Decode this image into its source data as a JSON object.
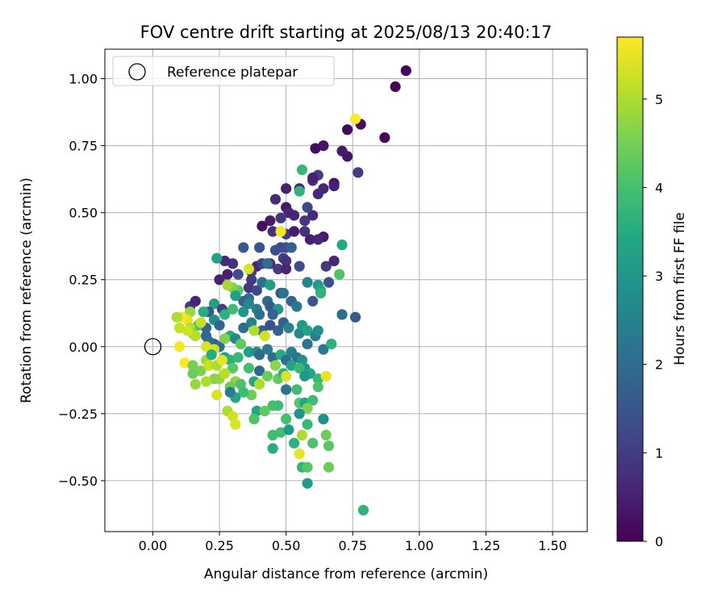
{
  "chart_data": {
    "type": "scatter",
    "title": "FOV centre drift starting at 2025/08/13 20:40:17",
    "xlabel": "Angular distance from reference (arcmin)",
    "ylabel": "Rotation from reference (arcmin)",
    "xlim": [
      -0.18,
      1.63
    ],
    "ylim": [
      -0.69,
      1.11
    ],
    "xticks": [
      0.0,
      0.25,
      0.5,
      0.75,
      1.0,
      1.25,
      1.5
    ],
    "xtick_labels": [
      "0.00",
      "0.25",
      "0.50",
      "0.75",
      "1.00",
      "1.25",
      "1.50"
    ],
    "yticks": [
      -0.5,
      -0.25,
      0.0,
      0.25,
      0.5,
      0.75,
      1.0
    ],
    "ytick_labels": [
      "−0.50",
      "−0.25",
      "0.00",
      "0.25",
      "0.50",
      "0.75",
      "1.00"
    ],
    "grid": true,
    "legend": {
      "placement": "top-left",
      "entries": [
        {
          "label": "Reference platepar",
          "marker": "open-circle"
        }
      ]
    },
    "reference_point": {
      "x": 0.0,
      "y": 0.0
    },
    "colorbar": {
      "label": "Hours from first FF file",
      "colormap": "viridis",
      "min": 0,
      "max": 5.7,
      "ticks": [
        0,
        1,
        2,
        3,
        4,
        5
      ],
      "tick_labels": [
        "0",
        "1",
        "2",
        "3",
        "4",
        "5"
      ]
    },
    "series": [
      {
        "color_by": "hours",
        "points": [
          [
            0.95,
            1.03,
            0.05
          ],
          [
            0.91,
            0.97,
            0.1
          ],
          [
            0.87,
            0.78,
            0.15
          ],
          [
            0.78,
            0.83,
            0.2
          ],
          [
            0.73,
            0.81,
            0.15
          ],
          [
            0.73,
            0.71,
            0.3
          ],
          [
            0.71,
            0.73,
            0.4
          ],
          [
            0.64,
            0.75,
            0.35
          ],
          [
            0.61,
            0.74,
            0.2
          ],
          [
            0.77,
            0.65,
            1.0
          ],
          [
            0.68,
            0.61,
            0.25
          ],
          [
            0.64,
            0.59,
            0.6
          ],
          [
            0.68,
            0.6,
            0.5
          ],
          [
            0.6,
            0.62,
            0.8
          ],
          [
            0.55,
            0.59,
            0.55
          ],
          [
            0.5,
            0.59,
            0.5
          ],
          [
            0.62,
            0.64,
            1.0
          ],
          [
            0.6,
            0.63,
            0.5
          ],
          [
            0.62,
            0.57,
            0.7
          ],
          [
            0.46,
            0.55,
            0.7
          ],
          [
            0.5,
            0.52,
            0.35
          ],
          [
            0.51,
            0.5,
            0.6
          ],
          [
            0.53,
            0.49,
            0.6
          ],
          [
            0.57,
            0.47,
            0.9
          ],
          [
            0.6,
            0.49,
            0.7
          ],
          [
            0.58,
            0.52,
            1.2
          ],
          [
            0.48,
            0.48,
            0.9
          ],
          [
            0.44,
            0.47,
            0.4
          ],
          [
            0.41,
            0.45,
            0.2
          ],
          [
            0.45,
            0.43,
            0.8
          ],
          [
            0.5,
            0.42,
            1.0
          ],
          [
            0.53,
            0.43,
            0.4
          ],
          [
            0.57,
            0.43,
            0.8
          ],
          [
            0.59,
            0.4,
            0.5
          ],
          [
            0.64,
            0.41,
            0.4
          ],
          [
            0.62,
            0.4,
            0.6
          ],
          [
            0.48,
            0.37,
            1.2
          ],
          [
            0.5,
            0.37,
            1.4
          ],
          [
            0.52,
            0.37,
            1.8
          ],
          [
            0.46,
            0.36,
            1.4
          ],
          [
            0.4,
            0.37,
            1.5
          ],
          [
            0.34,
            0.37,
            1.6
          ],
          [
            0.49,
            0.33,
            1.1
          ],
          [
            0.5,
            0.32,
            0.8
          ],
          [
            0.44,
            0.31,
            0.7
          ],
          [
            0.39,
            0.3,
            0.6
          ],
          [
            0.41,
            0.31,
            1.1
          ],
          [
            0.3,
            0.31,
            0.8
          ],
          [
            0.27,
            0.32,
            0.7
          ],
          [
            0.24,
            0.33,
            3.3
          ],
          [
            0.47,
            0.29,
            1.0
          ],
          [
            0.5,
            0.29,
            0.6
          ],
          [
            0.55,
            0.3,
            1.3
          ],
          [
            0.65,
            0.3,
            0.9
          ],
          [
            0.68,
            0.32,
            0.6
          ],
          [
            0.71,
            0.38,
            3.4
          ],
          [
            0.7,
            0.27,
            4.1
          ],
          [
            0.37,
            0.28,
            1.0
          ],
          [
            0.32,
            0.27,
            1.3
          ],
          [
            0.28,
            0.27,
            0.5
          ],
          [
            0.25,
            0.25,
            0.5
          ],
          [
            0.37,
            0.25,
            1.0
          ],
          [
            0.36,
            0.22,
            0.9
          ],
          [
            0.39,
            0.21,
            1.2
          ],
          [
            0.41,
            0.24,
            2.1
          ],
          [
            0.58,
            0.24,
            2.5
          ],
          [
            0.62,
            0.23,
            3.1
          ],
          [
            0.66,
            0.24,
            1.5
          ],
          [
            0.63,
            0.21,
            3.4
          ],
          [
            0.48,
            0.2,
            1.4
          ],
          [
            0.49,
            0.2,
            2.2
          ],
          [
            0.44,
            0.23,
            3.2
          ],
          [
            0.36,
            0.29,
            5.4
          ],
          [
            0.32,
            0.21,
            4.2
          ],
          [
            0.3,
            0.22,
            4.6
          ],
          [
            0.28,
            0.23,
            4.9
          ],
          [
            0.36,
            0.18,
            2.0
          ],
          [
            0.34,
            0.17,
            1.7
          ],
          [
            0.31,
            0.19,
            3.2
          ],
          [
            0.43,
            0.17,
            2.0
          ],
          [
            0.44,
            0.15,
            1.6
          ],
          [
            0.47,
            0.14,
            3.0
          ],
          [
            0.52,
            0.17,
            1.8
          ],
          [
            0.54,
            0.15,
            2.3
          ],
          [
            0.6,
            0.17,
            1.5
          ],
          [
            0.63,
            0.2,
            3.7
          ],
          [
            0.14,
            0.15,
            0.9
          ],
          [
            0.16,
            0.17,
            0.6
          ],
          [
            0.23,
            0.16,
            3.2
          ],
          [
            0.26,
            0.14,
            1.1
          ],
          [
            0.21,
            0.13,
            1.6
          ],
          [
            0.19,
            0.13,
            3.5
          ],
          [
            0.14,
            0.13,
            4.8
          ],
          [
            0.13,
            0.1,
            5.5
          ],
          [
            0.11,
            0.11,
            5.6
          ],
          [
            0.09,
            0.11,
            5.0
          ],
          [
            0.27,
            0.12,
            3.6
          ],
          [
            0.3,
            0.14,
            3.9
          ],
          [
            0.34,
            0.13,
            3.0
          ],
          [
            0.39,
            0.14,
            2.4
          ],
          [
            0.36,
            0.16,
            2.6
          ],
          [
            0.4,
            0.12,
            2.1
          ],
          [
            0.45,
            0.12,
            1.8
          ],
          [
            0.23,
            0.1,
            2.8
          ],
          [
            0.25,
            0.08,
            1.8
          ],
          [
            0.2,
            0.07,
            1.9
          ],
          [
            0.17,
            0.08,
            4.0
          ],
          [
            0.18,
            0.09,
            5.2
          ],
          [
            0.14,
            0.07,
            5.0
          ],
          [
            0.15,
            0.05,
            4.7
          ],
          [
            0.16,
            0.04,
            5.1
          ],
          [
            0.13,
            0.06,
            5.3
          ],
          [
            0.1,
            0.07,
            5.2
          ],
          [
            0.2,
            0.04,
            1.9
          ],
          [
            0.23,
            0.01,
            1.6
          ],
          [
            0.21,
            0.02,
            2.1
          ],
          [
            0.25,
            0.0,
            2.0
          ],
          [
            0.29,
            0.04,
            3.5
          ],
          [
            0.31,
            0.03,
            2.6
          ],
          [
            0.34,
            0.07,
            2.0
          ],
          [
            0.37,
            0.09,
            2.5
          ],
          [
            0.41,
            0.06,
            1.7
          ],
          [
            0.44,
            0.08,
            1.4
          ],
          [
            0.47,
            0.06,
            1.7
          ],
          [
            0.49,
            0.09,
            1.8
          ],
          [
            0.51,
            0.07,
            2.5
          ],
          [
            0.55,
            0.05,
            2.6
          ],
          [
            0.56,
            0.08,
            3.1
          ],
          [
            0.58,
            0.06,
            3.3
          ],
          [
            0.58,
            0.01,
            2.2
          ],
          [
            0.61,
            0.04,
            2.4
          ],
          [
            0.62,
            0.06,
            2.8
          ],
          [
            0.64,
            -0.01,
            2.3
          ],
          [
            0.67,
            0.01,
            3.6
          ],
          [
            0.38,
            0.06,
            5.0
          ],
          [
            0.42,
            0.04,
            5.3
          ],
          [
            0.33,
            0.01,
            4.3
          ],
          [
            0.27,
            0.03,
            4.6
          ],
          [
            0.23,
            -0.01,
            5.3
          ],
          [
            0.2,
            0.0,
            5.4
          ],
          [
            0.1,
            0.0,
            5.6
          ],
          [
            0.12,
            -0.06,
            5.7
          ],
          [
            0.15,
            -0.07,
            4.5
          ],
          [
            0.18,
            -0.09,
            4.6
          ],
          [
            0.2,
            -0.05,
            4.9
          ],
          [
            0.22,
            -0.03,
            3.5
          ],
          [
            0.27,
            -0.04,
            3.1
          ],
          [
            0.29,
            -0.05,
            3.6
          ],
          [
            0.3,
            -0.08,
            4.2
          ],
          [
            0.32,
            -0.04,
            3.8
          ],
          [
            0.36,
            -0.02,
            3.2
          ],
          [
            0.39,
            -0.02,
            2.8
          ],
          [
            0.4,
            -0.03,
            1.9
          ],
          [
            0.43,
            -0.01,
            2.3
          ],
          [
            0.45,
            -0.04,
            2.0
          ],
          [
            0.48,
            -0.03,
            3.5
          ],
          [
            0.5,
            -0.05,
            2.1
          ],
          [
            0.52,
            -0.02,
            2.4
          ],
          [
            0.54,
            -0.04,
            2.2
          ],
          [
            0.56,
            -0.05,
            2.9
          ],
          [
            0.57,
            -0.08,
            3.0
          ],
          [
            0.59,
            -0.1,
            3.4
          ],
          [
            0.62,
            -0.12,
            3.8
          ],
          [
            0.65,
            -0.11,
            5.5
          ],
          [
            0.25,
            -0.12,
            4.8
          ],
          [
            0.27,
            -0.1,
            5.1
          ],
          [
            0.23,
            -0.12,
            4.7
          ],
          [
            0.15,
            -0.1,
            4.4
          ],
          [
            0.16,
            -0.14,
            4.8
          ],
          [
            0.2,
            -0.13,
            5.0
          ],
          [
            0.21,
            -0.07,
            5.2
          ],
          [
            0.24,
            -0.07,
            5.0
          ],
          [
            0.26,
            -0.05,
            5.5
          ],
          [
            0.31,
            -0.13,
            4.7
          ],
          [
            0.29,
            -0.15,
            4.4
          ],
          [
            0.33,
            -0.14,
            4.1
          ],
          [
            0.36,
            -0.08,
            4.0
          ],
          [
            0.38,
            -0.13,
            3.4
          ],
          [
            0.4,
            -0.09,
            1.9
          ],
          [
            0.43,
            -0.11,
            4.4
          ],
          [
            0.47,
            -0.12,
            4.3
          ],
          [
            0.49,
            -0.1,
            3.6
          ],
          [
            0.5,
            -0.11,
            5.4
          ],
          [
            0.52,
            -0.07,
            3.3
          ],
          [
            0.55,
            -0.08,
            3.8
          ],
          [
            0.57,
            -0.11,
            3.0
          ],
          [
            0.46,
            -0.07,
            4.7
          ],
          [
            0.4,
            -0.14,
            5.0
          ],
          [
            0.37,
            -0.18,
            4.4
          ],
          [
            0.34,
            -0.17,
            3.9
          ],
          [
            0.31,
            -0.19,
            3.4
          ],
          [
            0.29,
            -0.17,
            2.4
          ],
          [
            0.24,
            -0.18,
            5.4
          ],
          [
            0.28,
            -0.24,
            5.0
          ],
          [
            0.3,
            -0.26,
            5.3
          ],
          [
            0.31,
            -0.29,
            5.4
          ],
          [
            0.39,
            -0.24,
            3.4
          ],
          [
            0.38,
            -0.27,
            4.1
          ],
          [
            0.42,
            -0.24,
            4.3
          ],
          [
            0.45,
            -0.22,
            4.0
          ],
          [
            0.47,
            -0.22,
            3.9
          ],
          [
            0.5,
            -0.16,
            2.2
          ],
          [
            0.54,
            -0.16,
            3.9
          ],
          [
            0.55,
            -0.21,
            4.2
          ],
          [
            0.57,
            -0.21,
            3.4
          ],
          [
            0.6,
            -0.2,
            3.9
          ],
          [
            0.62,
            -0.15,
            4.1
          ],
          [
            0.64,
            -0.27,
            2.8
          ],
          [
            0.58,
            -0.23,
            4.6
          ],
          [
            0.55,
            -0.25,
            2.9
          ],
          [
            0.5,
            -0.27,
            4.0
          ],
          [
            0.48,
            -0.32,
            4.0
          ],
          [
            0.51,
            -0.31,
            3.1
          ],
          [
            0.45,
            -0.33,
            3.9
          ],
          [
            0.45,
            -0.38,
            3.5
          ],
          [
            0.53,
            -0.36,
            3.6
          ],
          [
            0.56,
            -0.33,
            5.0
          ],
          [
            0.6,
            -0.36,
            4.1
          ],
          [
            0.65,
            -0.33,
            4.4
          ],
          [
            0.66,
            -0.37,
            4.2
          ],
          [
            0.58,
            -0.29,
            3.8
          ],
          [
            0.55,
            -0.4,
            5.5
          ],
          [
            0.56,
            -0.45,
            3.7
          ],
          [
            0.58,
            -0.45,
            4.2
          ],
          [
            0.66,
            -0.45,
            4.4
          ],
          [
            0.58,
            -0.51,
            3.1
          ],
          [
            0.79,
            -0.61,
            3.7
          ],
          [
            0.76,
            0.11,
            1.6
          ],
          [
            0.71,
            0.12,
            2.1
          ],
          [
            0.76,
            0.85,
            5.7
          ],
          [
            0.43,
            0.31,
            2.0
          ],
          [
            0.55,
            0.58,
            3.7
          ],
          [
            0.56,
            0.66,
            3.8
          ],
          [
            0.48,
            0.43,
            5.6
          ]
        ]
      }
    ]
  }
}
